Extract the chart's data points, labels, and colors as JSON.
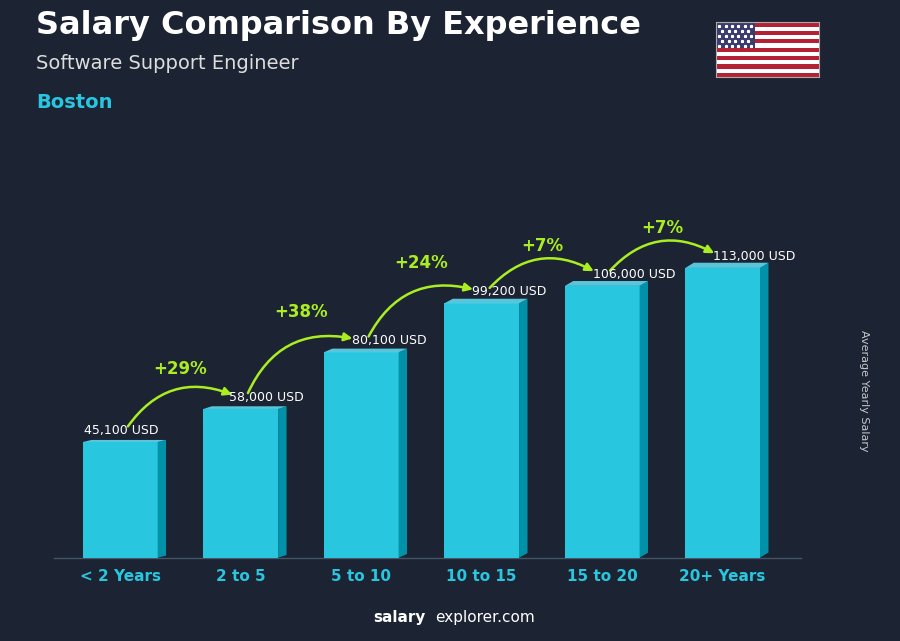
{
  "title": "Salary Comparison By Experience",
  "subtitle": "Software Support Engineer",
  "city": "Boston",
  "ylabel": "Average Yearly Salary",
  "categories": [
    "< 2 Years",
    "2 to 5",
    "5 to 10",
    "10 to 15",
    "15 to 20",
    "20+ Years"
  ],
  "values": [
    45100,
    58000,
    80100,
    99200,
    106000,
    113000
  ],
  "value_labels": [
    "45,100 USD",
    "58,000 USD",
    "80,100 USD",
    "99,200 USD",
    "106,000 USD",
    "113,000 USD"
  ],
  "pct_changes": [
    "+29%",
    "+38%",
    "+24%",
    "+7%",
    "+7%"
  ],
  "bar_color": "#29c6e0",
  "bar_right_color": "#0099b0",
  "bar_top_color": "#60d8ee",
  "pct_color": "#aaee22",
  "value_color": "#ffffff",
  "title_color": "#ffffff",
  "subtitle_color": "#dddddd",
  "city_color": "#29c6e0",
  "bg_color": "#1c2333",
  "watermark_bold": "salary",
  "watermark_normal": "explorer.com",
  "ylim": [
    0,
    130000
  ],
  "bar_width": 0.62
}
